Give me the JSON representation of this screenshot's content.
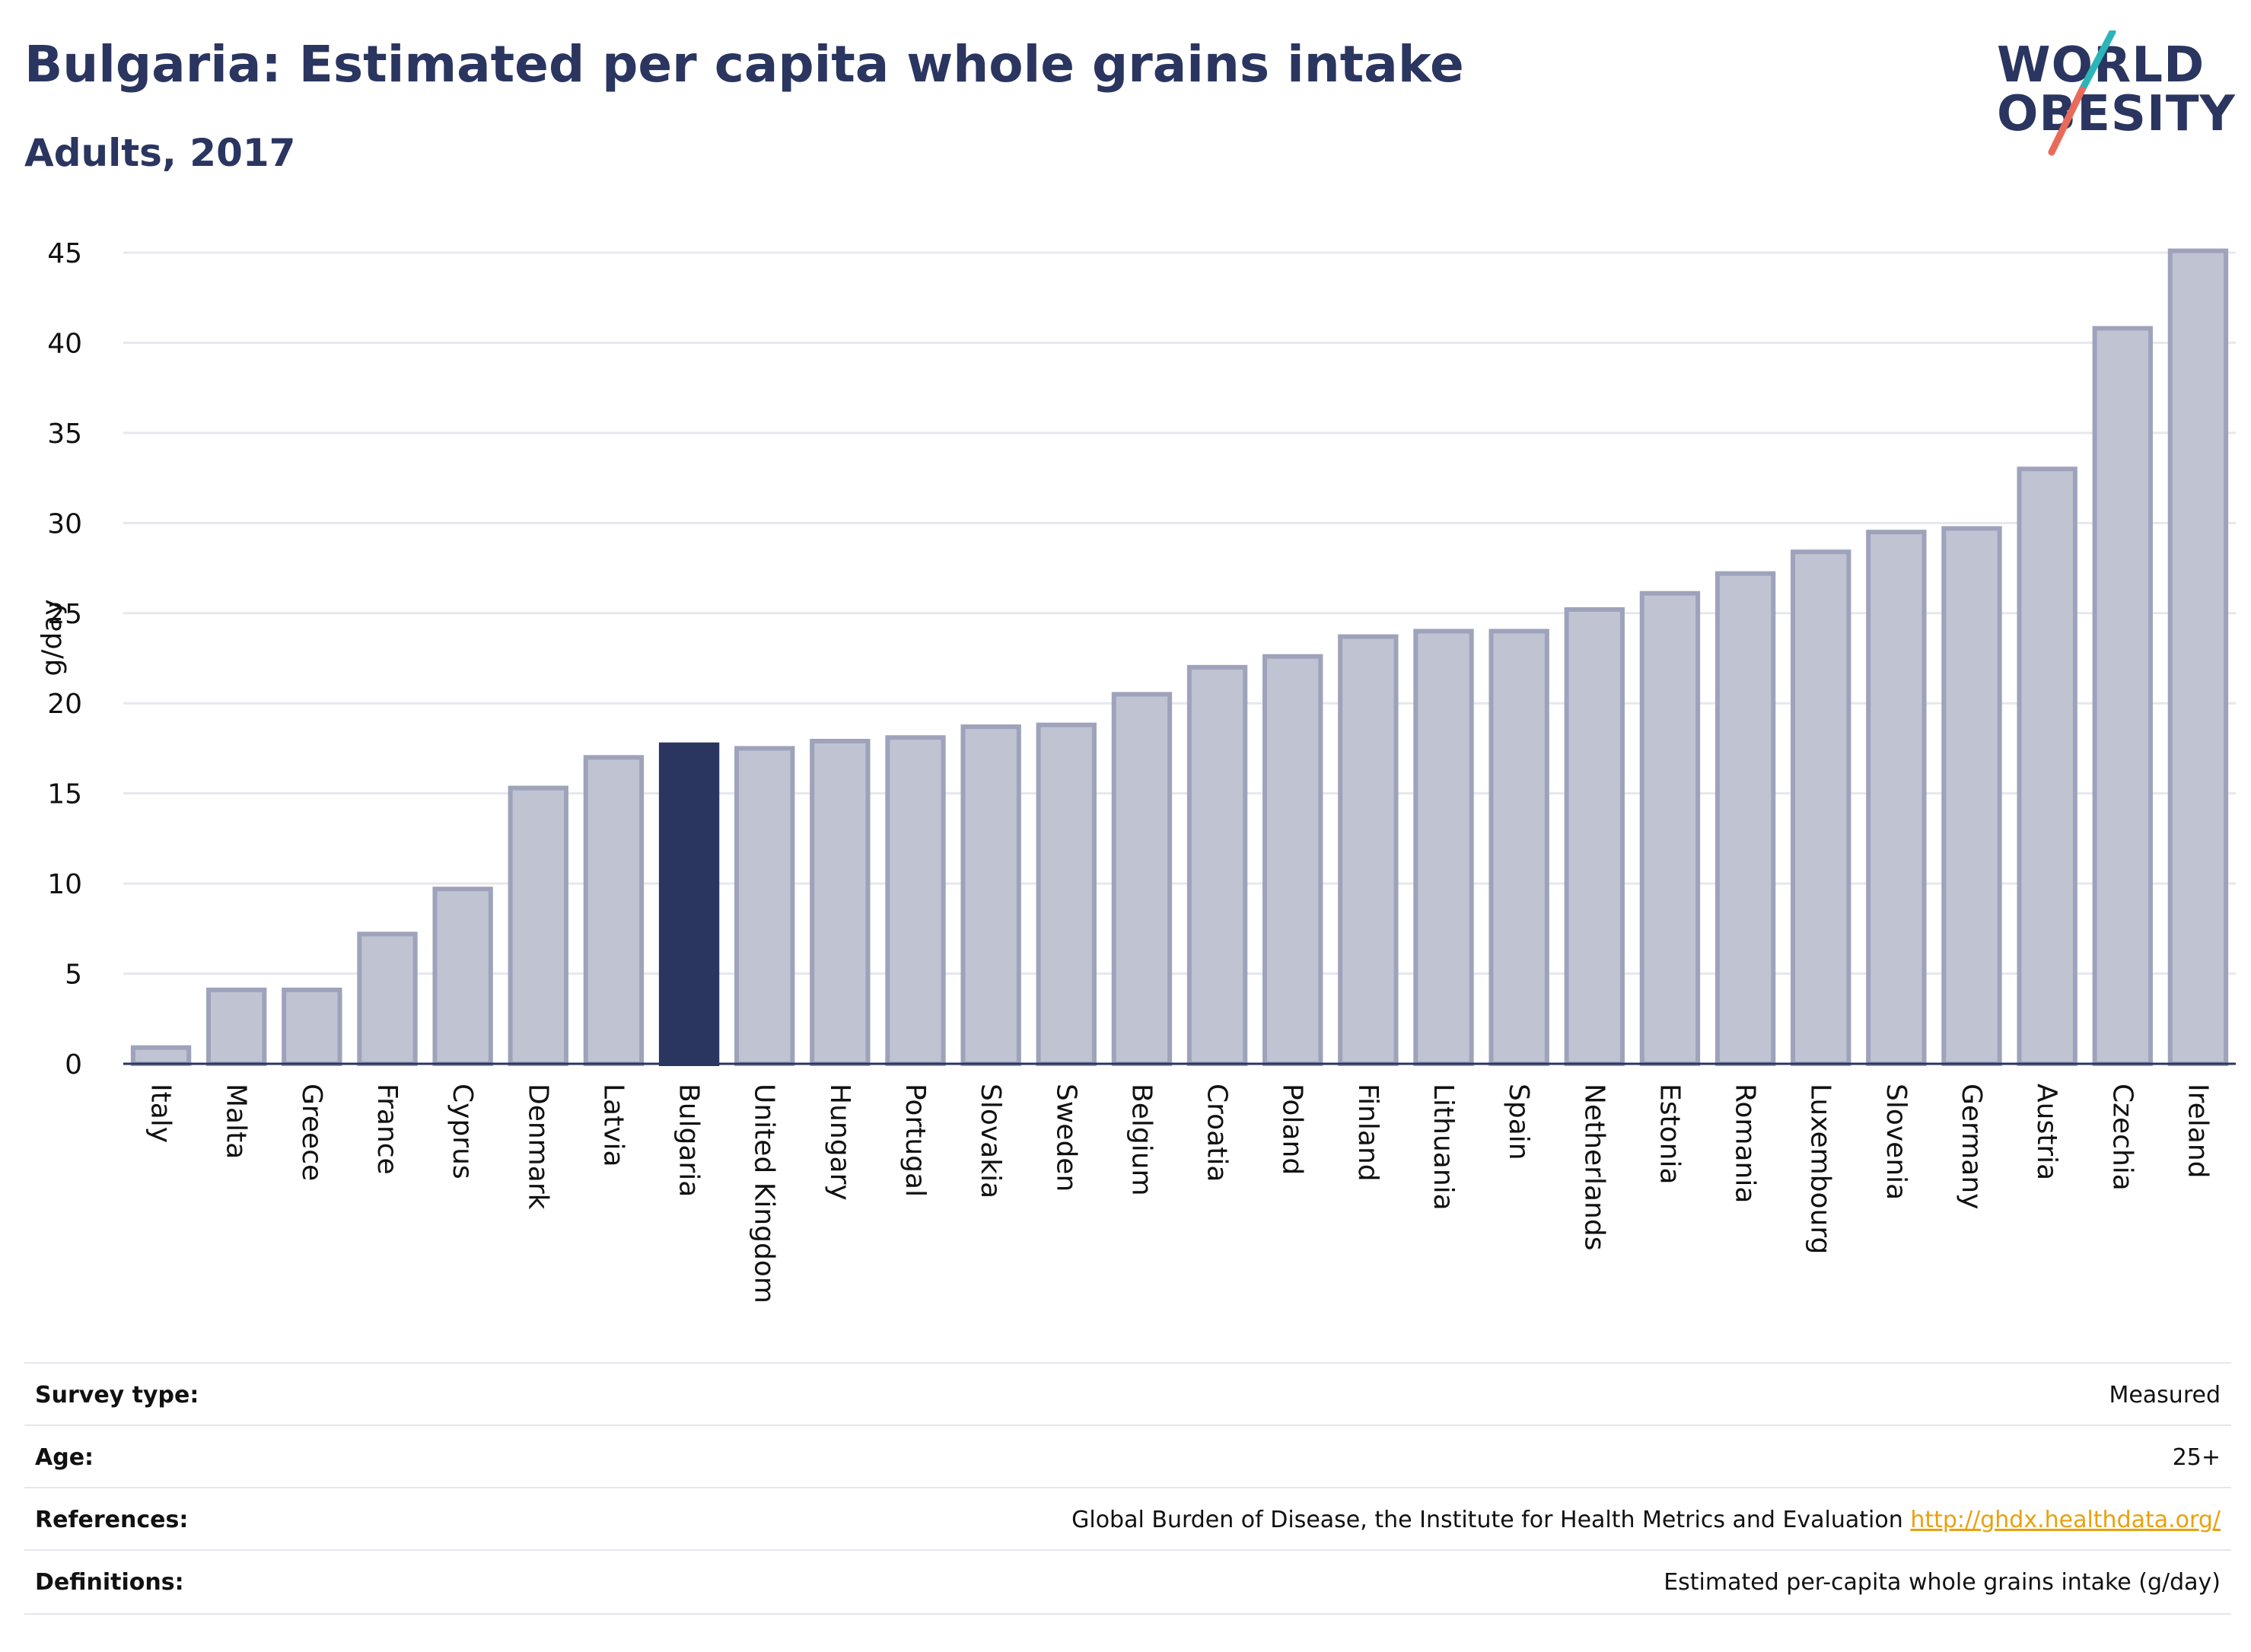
{
  "header": {
    "title": "Bulgaria: Estimated per capita whole grains intake",
    "subtitle": "Adults, 2017"
  },
  "logo": {
    "line1": "WORLD",
    "line2": "OBESITY",
    "colors": {
      "text": "#2a3560",
      "teal": "#2bb5b8",
      "coral": "#ea6a5a"
    }
  },
  "colors": {
    "highlight": "#2a3560",
    "bar_fill": "#c0c3d2",
    "bar_stroke": "#9ea3bb",
    "axis": "#2a3560",
    "grid": "#e6e8ee",
    "link": "#e8a10e"
  },
  "chart_data": {
    "type": "bar",
    "title": "Bulgaria: Estimated per capita whole grains intake",
    "subtitle": "Adults, 2017",
    "xlabel": "",
    "ylabel": "g/day",
    "ylim": [
      0,
      45
    ],
    "yticks": [
      0,
      5,
      10,
      15,
      20,
      25,
      30,
      35,
      40,
      45
    ],
    "grid": true,
    "highlight": "Bulgaria",
    "categories": [
      "Italy",
      "Malta",
      "Greece",
      "France",
      "Cyprus",
      "Denmark",
      "Latvia",
      "Bulgaria",
      "United Kingdom",
      "Hungary",
      "Portugal",
      "Slovakia",
      "Sweden",
      "Belgium",
      "Croatia",
      "Poland",
      "Finland",
      "Lithuania",
      "Spain",
      "Netherlands",
      "Estonia",
      "Romania",
      "Luxembourg",
      "Slovenia",
      "Germany",
      "Austria",
      "Czechia",
      "Ireland"
    ],
    "values": [
      0.9,
      4.1,
      4.1,
      7.2,
      9.7,
      15.3,
      17.0,
      17.7,
      17.5,
      17.9,
      18.1,
      18.7,
      18.8,
      20.5,
      22.0,
      22.6,
      23.7,
      24.0,
      24.0,
      25.2,
      26.1,
      27.2,
      28.4,
      29.5,
      29.7,
      33.0,
      40.8,
      45.1
    ]
  },
  "info": {
    "rows": [
      {
        "label": "Survey type:",
        "value": "Measured"
      },
      {
        "label": "Age:",
        "value": "25+"
      },
      {
        "label": "References:",
        "value": "Global Burden of Disease, the Institute for Health Metrics and Evaluation",
        "link": "http://ghdx.healthdata.org/"
      },
      {
        "label": "Definitions:",
        "value": "Estimated per-capita whole grains intake (g/day)"
      }
    ]
  }
}
